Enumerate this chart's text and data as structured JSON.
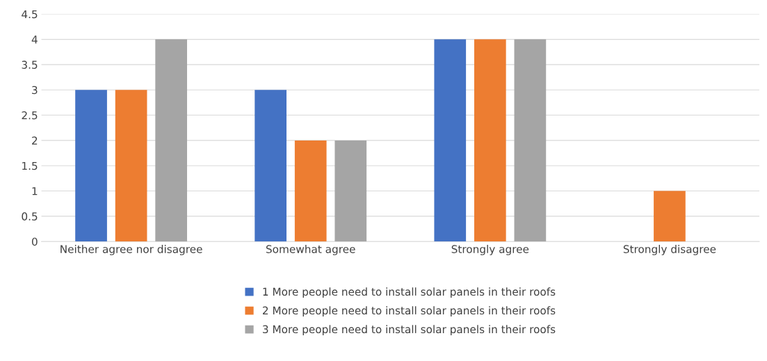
{
  "chart_data": {
    "type": "bar",
    "categories": [
      "Neither agree nor disagree",
      "Somewhat agree",
      "Strongly agree",
      "Strongly disagree"
    ],
    "series": [
      {
        "name": "1 More people need to install solar panels in their roofs",
        "color": "#4472c4",
        "values": [
          3,
          3,
          4,
          0
        ]
      },
      {
        "name": "2 More people need to install solar panels in their roofs",
        "color": "#ed7d31",
        "values": [
          3,
          2,
          4,
          1
        ]
      },
      {
        "name": "3 More people need to install solar panels in their roofs",
        "color": "#a5a5a5",
        "values": [
          4,
          2,
          4,
          0
        ]
      }
    ],
    "ylim": [
      0,
      4.5
    ],
    "yticks": [
      0,
      0.5,
      1,
      1.5,
      2,
      2.5,
      3,
      3.5,
      4,
      4.5
    ],
    "grid": "y",
    "legend": "bottom"
  }
}
